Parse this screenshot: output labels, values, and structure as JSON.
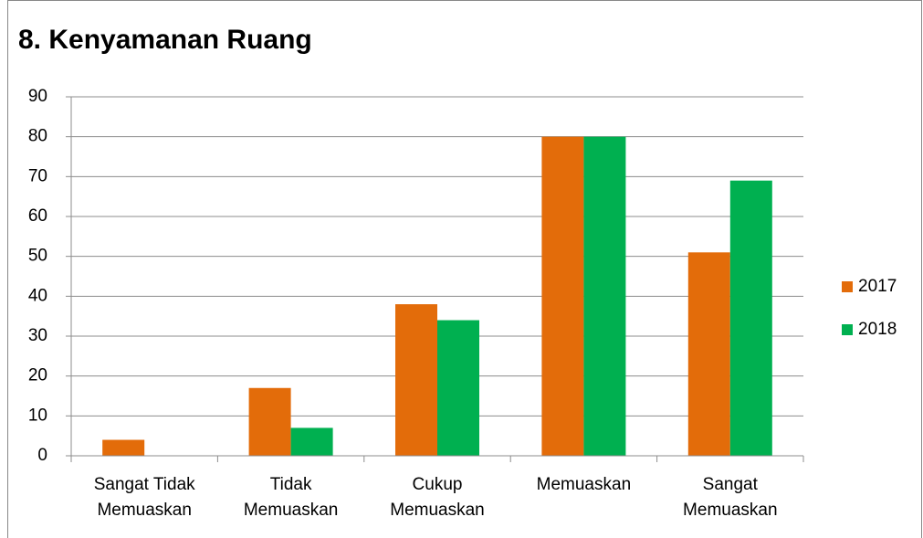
{
  "chart_data": {
    "type": "bar",
    "title": "8. Kenyamanan Ruang",
    "categories": [
      "Sangat Tidak Memuaskan",
      "Tidak Memuaskan",
      "Cukup Memuaskan",
      "Memuaskan",
      "Sangat Memuaskan"
    ],
    "series": [
      {
        "name": "2017",
        "color": "#e36c0a",
        "values": [
          4,
          17,
          38,
          80,
          51
        ]
      },
      {
        "name": "2018",
        "color": "#00b050",
        "values": [
          0,
          7,
          34,
          80,
          69
        ]
      }
    ],
    "ylim": [
      0,
      90
    ],
    "yticks": [
      0,
      10,
      20,
      30,
      40,
      50,
      60,
      70,
      80,
      90
    ],
    "grid": true,
    "legend": "right"
  }
}
